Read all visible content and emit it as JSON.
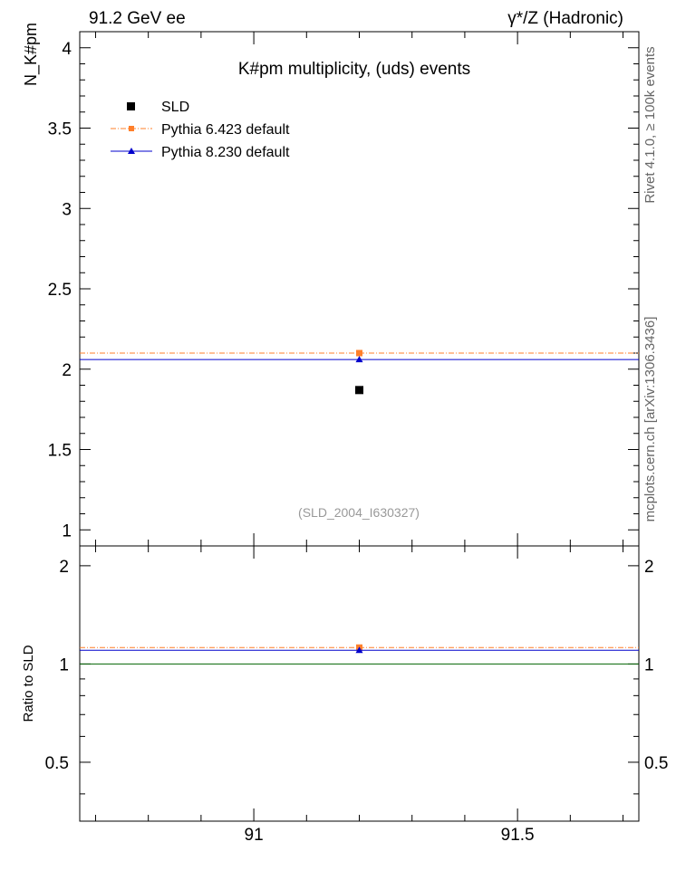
{
  "header": {
    "energy_label": "91.2 GeV ee",
    "process_label": "γ*/Z (Hadronic)"
  },
  "side_text": {
    "rivet": "Rivet 4.1.0, ≥ 100k events",
    "mcplots": "mcplots.cern.ch [arXiv:1306.3436]"
  },
  "watermark": "(SLD_2004_I630327)",
  "chart_data": [
    {
      "type": "scatter",
      "panel": "main",
      "title": "K#pm multiplicity, (uds) events",
      "ylabel": "N_K#pm",
      "xlim": [
        90.67,
        91.73
      ],
      "ylim": [
        0.9,
        4.1
      ],
      "y_ticks": [
        1,
        1.5,
        2,
        2.5,
        3,
        3.5,
        4
      ],
      "y_tick_labels": [
        "1",
        "1.5",
        "2",
        "2.5",
        "3",
        "3.5",
        "4"
      ],
      "legend_position": "top-left",
      "series": [
        {
          "name": "SLD",
          "x": [
            91.2
          ],
          "y": [
            1.87
          ],
          "color": "#000000",
          "marker": "square",
          "style": "points"
        },
        {
          "name": "Pythia 6.423 default",
          "x": [
            91.2
          ],
          "y": [
            2.1
          ],
          "x_range": [
            90.67,
            91.73
          ],
          "color": "#ff7f2a",
          "marker": "square",
          "style": "dash-dot"
        },
        {
          "name": "Pythia 8.230 default",
          "x": [
            91.2
          ],
          "y": [
            2.06
          ],
          "x_range": [
            90.67,
            91.73
          ],
          "color": "#0000cc",
          "marker": "triangle",
          "style": "solid"
        }
      ]
    },
    {
      "type": "scatter",
      "panel": "ratio",
      "ylabel": "Ratio to SLD",
      "xlim": [
        90.67,
        91.73
      ],
      "ylim": [
        0.33,
        2.3
      ],
      "x_ticks": [
        91,
        91.5
      ],
      "x_tick_labels": [
        "91",
        "91.5"
      ],
      "y_ticks": [
        0.5,
        1,
        2
      ],
      "y_tick_labels": [
        "0.5",
        "1",
        "2"
      ],
      "reference_line": {
        "y": 1.0,
        "color": "#006400"
      },
      "series": [
        {
          "name": "Pythia 6.423 default",
          "x": [
            91.2
          ],
          "y": [
            1.123
          ],
          "color": "#ff7f2a",
          "marker": "square",
          "style": "dash-dot"
        },
        {
          "name": "Pythia 8.230 default",
          "x": [
            91.2
          ],
          "y": [
            1.102
          ],
          "color": "#0000cc",
          "marker": "triangle",
          "style": "solid"
        }
      ]
    }
  ]
}
